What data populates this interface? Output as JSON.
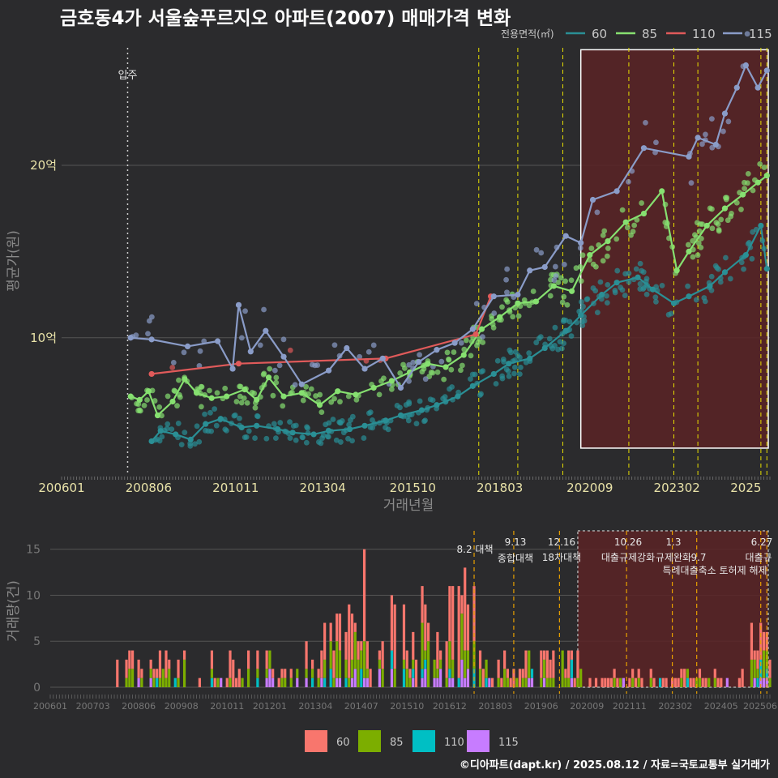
{
  "title": "금호동4가 서울숲푸르지오 아파트(2007) 매매가격 변화",
  "caption": "©디아파트(dapt.kr) / 2025.08.12 / 자료=국토교통부 실거래가",
  "colors": {
    "background": "#2b2b2d",
    "grid": "#555555",
    "s60": "#2a8f95",
    "s85": "#86e070",
    "s110": "#e05a5a",
    "s115": "#8a9cc8",
    "b60": "#f8766d",
    "b85": "#7cae00",
    "b110": "#00bfc4",
    "b115": "#c77cff",
    "highlight": "#5a2326",
    "policy_line": "#e8e000",
    "movein_line": "#cccccc"
  },
  "chart_data": [
    {
      "type": "line",
      "xlabel": "거래년월",
      "ylabel": "평균가(원)",
      "x_ticks": [
        "200601",
        "200806",
        "201011",
        "201304",
        "201510",
        "201803",
        "202009",
        "202302",
        "2025"
      ],
      "y_ticks": [
        "10억",
        "20억"
      ],
      "y_tick_values": [
        10,
        20
      ],
      "ylim": [
        2,
        27
      ],
      "xlim": [
        "2006-01",
        "2025-09"
      ],
      "legend_title": "전용면적(㎡)",
      "legend_position": "top-right",
      "movein_label": "입주",
      "movein_date": "2007-11",
      "policy_dates": [
        "2017-08",
        "2018-09",
        "2019-12",
        "2021-10",
        "2023-01",
        "2023-09",
        "2025-06",
        "2025-08"
      ],
      "highlight_range": [
        "2020-06",
        "2025-09"
      ],
      "series": [
        {
          "name": "60",
          "points": [
            [
              "2008-07",
              4.0
            ],
            [
              "2008-10",
              4.6
            ],
            [
              "2009-03",
              4.4
            ],
            [
              "2009-08",
              4.1
            ],
            [
              "2010-01",
              5.0
            ],
            [
              "2010-06",
              5.3
            ],
            [
              "2011-01",
              4.8
            ],
            [
              "2011-06",
              4.9
            ],
            [
              "2012-01",
              4.7
            ],
            [
              "2012-06",
              4.5
            ],
            [
              "2013-01",
              4.4
            ],
            [
              "2013-06",
              4.6
            ],
            [
              "2014-01",
              4.7
            ],
            [
              "2014-06",
              4.9
            ],
            [
              "2015-01",
              5.2
            ],
            [
              "2015-06",
              5.5
            ],
            [
              "2016-01",
              5.8
            ],
            [
              "2016-06",
              6.1
            ],
            [
              "2017-01",
              6.6
            ],
            [
              "2017-06",
              7.2
            ],
            [
              "2018-01",
              7.9
            ],
            [
              "2018-06",
              8.5
            ],
            [
              "2019-01",
              8.8
            ],
            [
              "2019-06",
              9.4
            ],
            [
              "2020-01",
              10.4
            ],
            [
              "2020-06",
              11.3
            ],
            [
              "2021-01",
              12.5
            ],
            [
              "2021-06",
              13.2
            ],
            [
              "2022-01",
              13.5
            ],
            [
              "2022-06",
              12.8
            ],
            [
              "2023-01",
              12.0
            ],
            [
              "2023-06",
              12.4
            ],
            [
              "2024-01",
              13.0
            ],
            [
              "2024-06",
              13.8
            ],
            [
              "2025-01",
              14.8
            ],
            [
              "2025-06",
              16.5
            ],
            [
              "2025-08",
              14.0
            ]
          ]
        },
        {
          "name": "85",
          "points": [
            [
              "2007-12",
              6.6
            ],
            [
              "2008-03",
              6.4
            ],
            [
              "2008-06",
              6.9
            ],
            [
              "2008-09",
              5.5
            ],
            [
              "2009-02",
              6.3
            ],
            [
              "2009-06",
              7.6
            ],
            [
              "2009-10",
              6.8
            ],
            [
              "2010-03",
              6.5
            ],
            [
              "2010-08",
              6.6
            ],
            [
              "2011-02",
              7.0
            ],
            [
              "2011-06",
              6.4
            ],
            [
              "2011-10",
              7.7
            ],
            [
              "2012-03",
              6.6
            ],
            [
              "2012-09",
              6.8
            ],
            [
              "2013-03",
              6.1
            ],
            [
              "2013-09",
              6.9
            ],
            [
              "2014-03",
              6.7
            ],
            [
              "2014-09",
              7.1
            ],
            [
              "2015-03",
              7.5
            ],
            [
              "2015-09",
              8.0
            ],
            [
              "2016-03",
              8.5
            ],
            [
              "2016-09",
              8.3
            ],
            [
              "2017-03",
              9.0
            ],
            [
              "2017-09",
              10.5
            ],
            [
              "2018-03",
              11.2
            ],
            [
              "2018-09",
              12.0
            ],
            [
              "2019-03",
              12.1
            ],
            [
              "2019-09",
              13.0
            ],
            [
              "2020-03",
              12.7
            ],
            [
              "2020-09",
              14.8
            ],
            [
              "2021-03",
              15.6
            ],
            [
              "2021-09",
              16.7
            ],
            [
              "2022-03",
              17.2
            ],
            [
              "2022-09",
              18.5
            ],
            [
              "2023-02",
              13.9
            ],
            [
              "2023-06",
              15.0
            ],
            [
              "2023-12",
              16.5
            ],
            [
              "2024-06",
              17.5
            ],
            [
              "2024-12",
              18.3
            ],
            [
              "2025-05",
              19.0
            ],
            [
              "2025-08",
              19.4
            ]
          ]
        },
        {
          "name": "110",
          "points": [
            [
              "2008-07",
              7.9
            ],
            [
              "2010-12",
              8.5
            ],
            [
              "2015-01",
              8.8
            ],
            [
              "2017-07",
              10.2
            ],
            [
              "2017-12",
              12.4
            ]
          ]
        },
        {
          "name": "115",
          "points": [
            [
              "2007-12",
              10.0
            ],
            [
              "2008-07",
              9.9
            ],
            [
              "2009-07",
              9.5
            ],
            [
              "2010-05",
              9.8
            ],
            [
              "2010-10",
              8.2
            ],
            [
              "2010-12",
              11.9
            ],
            [
              "2011-04",
              9.2
            ],
            [
              "2011-09",
              10.4
            ],
            [
              "2012-03",
              8.9
            ],
            [
              "2012-09",
              7.3
            ],
            [
              "2013-06",
              8.1
            ],
            [
              "2013-12",
              9.4
            ],
            [
              "2014-06",
              8.2
            ],
            [
              "2014-12",
              8.8
            ],
            [
              "2015-06",
              7.1
            ],
            [
              "2015-12",
              8.6
            ],
            [
              "2016-06",
              9.3
            ],
            [
              "2016-12",
              9.7
            ],
            [
              "2017-06",
              10.5
            ],
            [
              "2018-01",
              12.4
            ],
            [
              "2018-09",
              12.5
            ],
            [
              "2019-01",
              13.9
            ],
            [
              "2019-06",
              14.1
            ],
            [
              "2020-01",
              15.9
            ],
            [
              "2020-06",
              15.5
            ],
            [
              "2020-10",
              18.0
            ],
            [
              "2021-06",
              18.5
            ],
            [
              "2022-03",
              21.0
            ],
            [
              "2023-06",
              20.5
            ],
            [
              "2023-09",
              21.6
            ],
            [
              "2024-03",
              21.2
            ],
            [
              "2024-06",
              23.0
            ],
            [
              "2024-10",
              24.5
            ],
            [
              "2025-01",
              25.8
            ],
            [
              "2025-05",
              24.5
            ],
            [
              "2025-08",
              25.5
            ]
          ]
        }
      ]
    },
    {
      "type": "bar",
      "stacked": true,
      "ylabel": "거래량(건)",
      "y_ticks": [
        "0",
        "5",
        "10",
        "15"
      ],
      "y_tick_values": [
        0,
        5,
        10,
        15
      ],
      "ylim": [
        0,
        17
      ],
      "x_ticks": [
        "200601",
        "200703",
        "200806",
        "200908",
        "201011",
        "201201",
        "201304",
        "201407",
        "201510",
        "201612",
        "201803",
        "201906",
        "202009",
        "202111",
        "202302",
        "202405",
        "202506"
      ],
      "legend_position": "bottom",
      "legend_labels": [
        "60",
        "85",
        "110",
        "115"
      ],
      "policies": [
        {
          "date": "2017-08",
          "label": "8.2 대책"
        },
        {
          "date": "2018-09",
          "label": "9.13 종합대책"
        },
        {
          "date": "2019-12",
          "label": "12.16 18차대책"
        },
        {
          "date": "2021-10",
          "label": "10.26 대출규제강화"
        },
        {
          "date": "2023-01",
          "label": "1.3 규제완화"
        },
        {
          "date": "2023-09",
          "label": "9.7 특례대출축소 토허제 해제"
        },
        {
          "date": "2025-06",
          "label": "6.27 대출규"
        },
        {
          "date": "2025-08",
          "label": ""
        }
      ],
      "policy_texts": [
        "8.2 대책",
        "9.13",
        "종합대책",
        "12.16",
        "18차대책",
        "10.26",
        "대출규제강화",
        "1.3",
        "규제완화",
        "9.7",
        "특례대출축소 토허제 해제",
        "6.27",
        "대출규"
      ],
      "highlight_range": [
        "2020-06",
        "2025-09"
      ],
      "monthly_volume_note": "stacked monthly counts for 60, 85, 110, 115 m² series"
    }
  ]
}
